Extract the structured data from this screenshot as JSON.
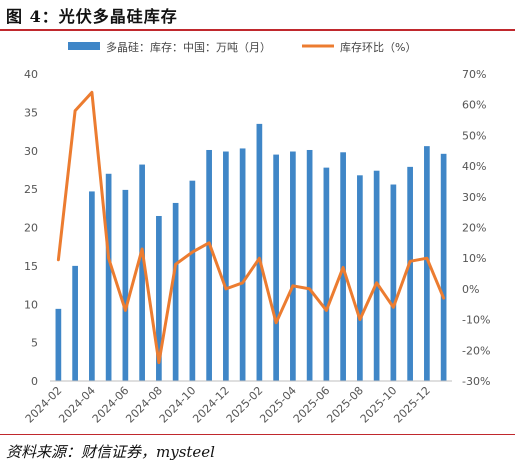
{
  "figure": {
    "title": "图 4：光伏多晶硅库存",
    "source": "资料来源：财信证券，mysteel"
  },
  "chart_data": {
    "type": "bar+line",
    "categories": [
      "2024-02",
      "2024-03",
      "2024-04",
      "2024-05",
      "2024-06",
      "2024-07",
      "2024-08",
      "2024-09",
      "2024-10",
      "2024-11",
      "2024-12",
      "2025-01",
      "2025-02",
      "2025-03",
      "2025-04",
      "2025-05",
      "2025-06",
      "2025-07",
      "2025-08",
      "2025-09",
      "2025-10",
      "2025-11",
      "2025-12",
      "2026-01"
    ],
    "tick_labels": [
      "2024-02",
      "",
      "2024-04",
      "",
      "2024-06",
      "",
      "2024-08",
      "",
      "2024-10",
      "",
      "2024-12",
      "",
      "2025-02",
      "",
      "2025-04",
      "",
      "2025-06",
      "",
      "2025-08",
      "",
      "2025-10",
      "",
      "2025-12",
      ""
    ],
    "series": [
      {
        "name": "多晶硅：库存：中国：万吨（月）",
        "type": "bar",
        "axis": "left",
        "color": "#3f86c7",
        "values": [
          9.4,
          15.0,
          24.7,
          27.0,
          24.9,
          28.2,
          21.5,
          23.2,
          26.1,
          30.1,
          29.9,
          30.3,
          33.5,
          29.5,
          29.9,
          30.1,
          27.8,
          29.8,
          26.8,
          27.4,
          25.6,
          27.9,
          30.6,
          29.6
        ]
      },
      {
        "name": "库存环比（%）",
        "type": "line",
        "axis": "right",
        "color": "#ec7c30",
        "values": [
          9.5,
          58,
          64,
          10,
          -7,
          13,
          -24,
          8,
          12,
          15,
          0,
          2,
          10,
          -11,
          1,
          0,
          -7,
          7,
          -10,
          2,
          -6,
          9,
          10,
          -3
        ]
      }
    ],
    "y_left": {
      "min": 0,
      "max": 40,
      "ticks": [
        0,
        5,
        10,
        15,
        20,
        25,
        30,
        35,
        40
      ]
    },
    "y_right": {
      "min": -30,
      "max": 70,
      "ticks": [
        -30,
        -20,
        -10,
        0,
        10,
        20,
        30,
        40,
        50,
        60,
        70
      ],
      "tick_labels": [
        "-30%",
        "-20%",
        "-10%",
        "0%",
        "10%",
        "20%",
        "30%",
        "40%",
        "50%",
        "60%",
        "70%"
      ]
    },
    "legend": {
      "position": "top"
    },
    "grid": false
  }
}
